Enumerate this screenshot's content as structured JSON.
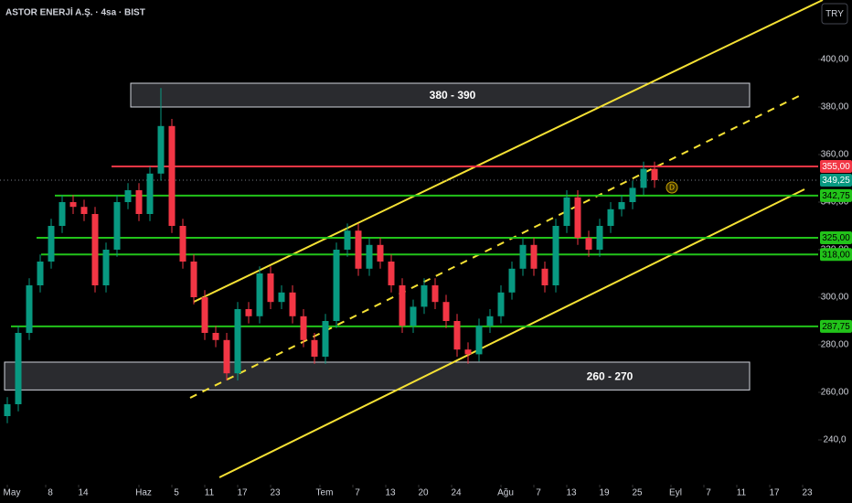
{
  "chart_data": {
    "type": "candlestick",
    "title": "ASTOR ENERJİ A.Ş. · 4sa · BIST",
    "currency": "TRY",
    "up_color": "#089981",
    "down_color": "#f23645",
    "xlim": [
      -0.7,
      74
    ],
    "xticks": [
      {
        "value": 0,
        "label": "May"
      },
      {
        "value": 3.5,
        "label": "8"
      },
      {
        "value": 6.5,
        "label": "14"
      },
      {
        "value": 12,
        "label": "Haz"
      },
      {
        "value": 15,
        "label": "5"
      },
      {
        "value": 18,
        "label": "11"
      },
      {
        "value": 21,
        "label": "17"
      },
      {
        "value": 24,
        "label": "23"
      },
      {
        "value": 28.5,
        "label": "Tem"
      },
      {
        "value": 31.5,
        "label": "7"
      },
      {
        "value": 34.5,
        "label": "13"
      },
      {
        "value": 37.5,
        "label": "20"
      },
      {
        "value": 40.5,
        "label": "24"
      },
      {
        "value": 45,
        "label": "Ağu"
      },
      {
        "value": 48,
        "label": "7"
      },
      {
        "value": 51,
        "label": "13"
      },
      {
        "value": 54,
        "label": "19"
      },
      {
        "value": 57,
        "label": "25"
      },
      {
        "value": 60.5,
        "label": "Eyl"
      },
      {
        "value": 63.5,
        "label": "7"
      },
      {
        "value": 66.5,
        "label": "11"
      },
      {
        "value": 69.5,
        "label": "17"
      },
      {
        "value": 72.5,
        "label": "23"
      }
    ],
    "ylim": [
      221,
      425
    ],
    "yticks": [
      {
        "value": 240,
        "label": "240,0"
      },
      {
        "value": 260,
        "label": "260,00"
      },
      {
        "value": 280,
        "label": "280,00"
      },
      {
        "value": 300,
        "label": "300,00"
      },
      {
        "value": 320,
        "label": "320,00"
      },
      {
        "value": 340,
        "label": "340,00"
      },
      {
        "value": 360,
        "label": "360,00"
      },
      {
        "value": 380,
        "label": "380,00"
      },
      {
        "value": 400,
        "label": "400,00"
      }
    ],
    "open": [
      250,
      255,
      285,
      305,
      315,
      330,
      340,
      338,
      335,
      305,
      320,
      340,
      345,
      335,
      352,
      372,
      330,
      315,
      300,
      285,
      282,
      268,
      295,
      292,
      310,
      298,
      302,
      292,
      282,
      275,
      290,
      320,
      328,
      312,
      322,
      315,
      305,
      288,
      296,
      305,
      298,
      290,
      278,
      276,
      288,
      292,
      302,
      312,
      322,
      312,
      305,
      330,
      342,
      325,
      320,
      330,
      337,
      340,
      346,
      354
    ],
    "high": [
      258,
      288,
      308,
      318,
      333,
      343,
      343,
      341,
      338,
      323,
      343,
      348,
      348,
      355,
      388,
      375,
      333,
      318,
      303,
      288,
      285,
      298,
      298,
      313,
      313,
      305,
      305,
      295,
      285,
      293,
      323,
      331,
      331,
      325,
      325,
      318,
      308,
      299,
      308,
      308,
      301,
      293,
      281,
      291,
      295,
      305,
      315,
      325,
      325,
      315,
      333,
      345,
      345,
      328,
      333,
      340,
      343,
      349,
      357,
      357
    ],
    "low": [
      247,
      252,
      282,
      302,
      312,
      327,
      335,
      332,
      302,
      302,
      317,
      337,
      332,
      332,
      349,
      327,
      312,
      297,
      282,
      279,
      265,
      265,
      289,
      289,
      295,
      295,
      289,
      279,
      272,
      272,
      287,
      317,
      309,
      309,
      312,
      302,
      285,
      285,
      293,
      295,
      287,
      275,
      272,
      273,
      285,
      289,
      299,
      309,
      309,
      302,
      302,
      327,
      322,
      317,
      317,
      327,
      334,
      337,
      343,
      346
    ],
    "close": [
      255,
      285,
      305,
      315,
      330,
      340,
      338,
      335,
      305,
      320,
      340,
      345,
      335,
      352,
      372,
      330,
      315,
      300,
      285,
      282,
      268,
      295,
      292,
      310,
      298,
      302,
      292,
      282,
      275,
      290,
      320,
      328,
      312,
      322,
      315,
      305,
      288,
      296,
      305,
      298,
      290,
      278,
      276,
      288,
      292,
      302,
      312,
      322,
      312,
      305,
      330,
      342,
      325,
      320,
      330,
      337,
      340,
      346,
      354,
      349.25
    ],
    "last": {
      "value": 349.25,
      "label": "349,25",
      "color": "#089981"
    },
    "levels": [
      {
        "value": 355,
        "label": "355,00",
        "color": "#f23645"
      },
      {
        "value": 342.75,
        "label": "342,75",
        "color": "#22c31a"
      },
      {
        "value": 325,
        "label": "325,00",
        "color": "#22c31a"
      },
      {
        "value": 318,
        "label": "318,00",
        "color": "#22c31a"
      },
      {
        "value": 287.75,
        "label": "287,75",
        "color": "#22c31a"
      }
    ],
    "zones": [
      {
        "low": 380,
        "high": 390,
        "label": "380 - 390"
      },
      {
        "low": 261,
        "high": 272.7,
        "label": "260 - 270"
      }
    ]
  }
}
